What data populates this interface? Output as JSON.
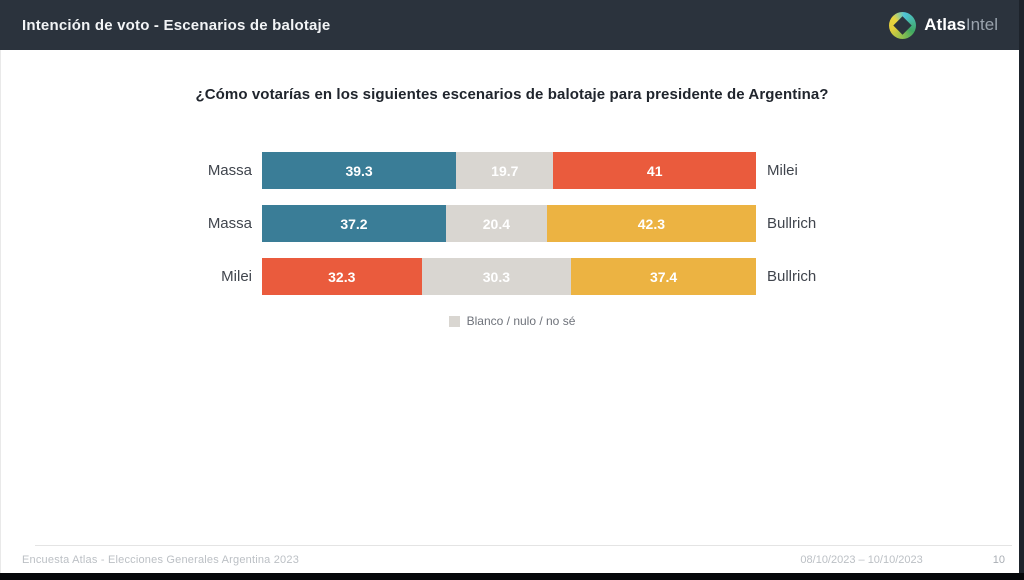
{
  "header": {
    "title": "Intención de voto - Escenarios de balotaje",
    "brand": {
      "bold": "Atlas",
      "light": "Intel"
    }
  },
  "question": "¿Cómo votarías en los siguientes escenarios de balotaje para presidente de Argentina?",
  "colors": {
    "header_bg": "#2b333d",
    "massa_blue": "#3a7d97",
    "milei_orange": "#ea5b3d",
    "bullrich_yellow": "#ecb342",
    "blank_gray": "#d9d6d1"
  },
  "chart_data": {
    "type": "bar",
    "subtype": "horizontal-stacked",
    "title": "¿Cómo votarías en los siguientes escenarios de balotaje para presidente de Argentina?",
    "unit": "%",
    "legend": {
      "label": "Blanco / nulo / no sé",
      "color": "#d9d6d1",
      "position": "bottom-center"
    },
    "rows": [
      {
        "left_label": "Massa",
        "right_label": "Milei",
        "segments": [
          {
            "label": "Massa",
            "value": 39.3,
            "color": "#3a7d97"
          },
          {
            "label": "Blanco / nulo / no sé",
            "value": 19.7,
            "color": "#d9d6d1"
          },
          {
            "label": "Milei",
            "value": 41,
            "color": "#ea5b3d"
          }
        ]
      },
      {
        "left_label": "Massa",
        "right_label": "Bullrich",
        "segments": [
          {
            "label": "Massa",
            "value": 37.2,
            "color": "#3a7d97"
          },
          {
            "label": "Blanco / nulo / no sé",
            "value": 20.4,
            "color": "#d9d6d1"
          },
          {
            "label": "Bullrich",
            "value": 42.3,
            "color": "#ecb342"
          }
        ]
      },
      {
        "left_label": "Milei",
        "right_label": "Bullrich",
        "segments": [
          {
            "label": "Milei",
            "value": 32.3,
            "color": "#ea5b3d"
          },
          {
            "label": "Blanco / nulo / no sé",
            "value": 30.3,
            "color": "#d9d6d1"
          },
          {
            "label": "Bullrich",
            "value": 37.4,
            "color": "#ecb342"
          }
        ]
      }
    ]
  },
  "footer": {
    "source": "Encuesta Atlas - Elecciones Generales Argentina 2023",
    "dates": "08/10/2023 – 10/10/2023",
    "page": "10"
  }
}
